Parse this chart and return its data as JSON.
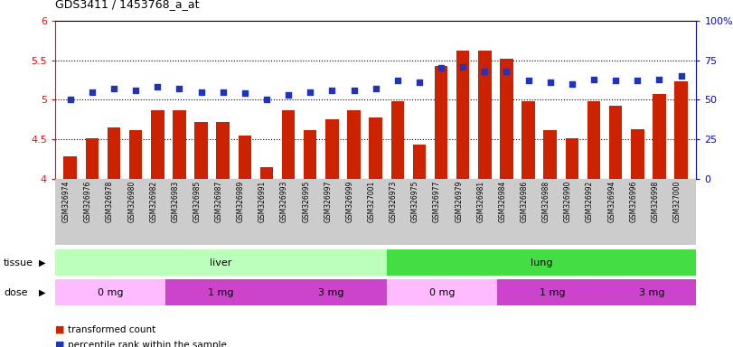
{
  "title": "GDS3411 / 1453768_a_at",
  "samples": [
    "GSM326974",
    "GSM326976",
    "GSM326978",
    "GSM326980",
    "GSM326982",
    "GSM326983",
    "GSM326985",
    "GSM326987",
    "GSM326989",
    "GSM326991",
    "GSM326993",
    "GSM326995",
    "GSM326997",
    "GSM326999",
    "GSM327001",
    "GSM326973",
    "GSM326975",
    "GSM326977",
    "GSM326979",
    "GSM326981",
    "GSM326984",
    "GSM326986",
    "GSM326988",
    "GSM326990",
    "GSM326992",
    "GSM326994",
    "GSM326996",
    "GSM326998",
    "GSM327000"
  ],
  "bar_values": [
    4.28,
    4.51,
    4.65,
    4.62,
    4.87,
    4.87,
    4.72,
    4.72,
    4.55,
    4.15,
    4.87,
    4.62,
    4.75,
    4.87,
    4.78,
    4.98,
    4.43,
    5.43,
    5.62,
    5.62,
    5.52,
    4.98,
    4.62,
    4.51,
    4.98,
    4.93,
    4.63,
    5.07,
    5.23
  ],
  "dot_values_pct": [
    50,
    55,
    57,
    56,
    58,
    57,
    55,
    55,
    54,
    50,
    53,
    55,
    56,
    56,
    57,
    62,
    61,
    70,
    71,
    68,
    68,
    62,
    61,
    60,
    63,
    62,
    62,
    63,
    65
  ],
  "ylim_left": [
    4.0,
    6.0
  ],
  "ylim_right": [
    0,
    100
  ],
  "yticks_left": [
    4.0,
    4.5,
    5.0,
    5.5,
    6.0
  ],
  "ytick_labels_left": [
    "4",
    "4.5",
    "5",
    "5.5",
    "6"
  ],
  "yticks_right": [
    0,
    25,
    50,
    75,
    100
  ],
  "ytick_labels_right": [
    "0",
    "25",
    "50",
    "75",
    "100%"
  ],
  "grid_lines": [
    4.5,
    5.0,
    5.5
  ],
  "bar_color": "#cc2200",
  "dot_color": "#2233bb",
  "tissue_groups": [
    {
      "label": "liver",
      "start": 0,
      "end": 14,
      "color": "#bbffbb"
    },
    {
      "label": "lung",
      "start": 15,
      "end": 28,
      "color": "#44dd44"
    }
  ],
  "dose_groups": [
    {
      "label": "0 mg",
      "start": 0,
      "end": 4,
      "color": "#ffaaff"
    },
    {
      "label": "1 mg",
      "start": 5,
      "end": 9,
      "color": "#dd44dd"
    },
    {
      "label": "3 mg",
      "start": 10,
      "end": 14,
      "color": "#dd44dd"
    },
    {
      "label": "0 mg",
      "start": 15,
      "end": 19,
      "color": "#ffaaff"
    },
    {
      "label": "1 mg",
      "start": 20,
      "end": 24,
      "color": "#dd44dd"
    },
    {
      "label": "3 mg",
      "start": 25,
      "end": 28,
      "color": "#dd44dd"
    }
  ],
  "legend_items": [
    {
      "label": "transformed count",
      "color": "#cc2200"
    },
    {
      "label": "percentile rank within the sample",
      "color": "#2233bb"
    }
  ],
  "tissue_label": "tissue",
  "dose_label": "dose",
  "background_color": "#ffffff",
  "plot_bg_color": "#ffffff",
  "xticklabel_bg": "#cccccc"
}
